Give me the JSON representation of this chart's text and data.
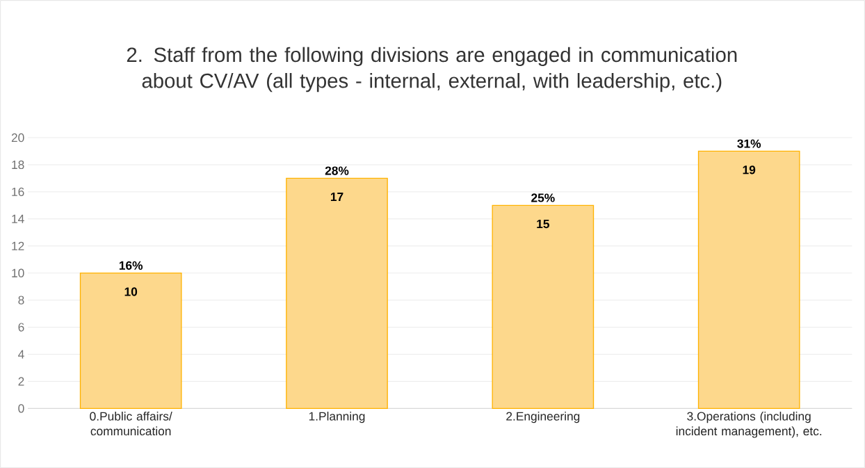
{
  "chart_data": {
    "type": "bar",
    "title": "2.  Staff from the following divisions are engaged in communication about CV/AV (all types - internal, external, with leadership, etc.)",
    "categories": [
      "0.Public affairs/ communication",
      "1.Planning",
      "2.Engineering",
      "3.Operations (including incident management), etc."
    ],
    "values": [
      10,
      17,
      15,
      19
    ],
    "color": "#fdd88c",
    "data_labels": true,
    "annotations": [
      {
        "text": "16%",
        "x": "0.Public affairs/ communication",
        "y": 10
      },
      {
        "text": "28%",
        "x": "1.Planning",
        "y": 17
      },
      {
        "text": "25%",
        "x": "2.Engineering",
        "y": 15
      },
      {
        "text": "31%",
        "x": "3.Operations (including incident management), etc.",
        "y": 19
      }
    ],
    "ylim": [
      0,
      20
    ],
    "yticks": [
      0,
      2,
      4,
      6,
      8,
      10,
      12,
      14,
      16,
      18,
      20
    ],
    "grid": "y"
  }
}
